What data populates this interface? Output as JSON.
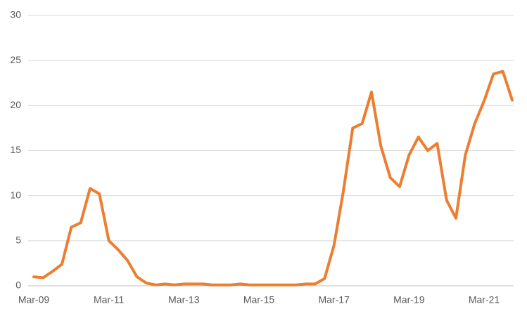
{
  "chart_data": {
    "type": "line",
    "categories": [
      "Mar-09",
      null,
      null,
      null,
      null,
      null,
      null,
      null,
      "Mar-11",
      null,
      null,
      null,
      null,
      null,
      null,
      null,
      "Mar-13",
      null,
      null,
      null,
      null,
      null,
      null,
      null,
      "Mar-15",
      null,
      null,
      null,
      null,
      null,
      null,
      null,
      "Mar-17",
      null,
      null,
      null,
      null,
      null,
      null,
      null,
      "Mar-19",
      null,
      null,
      null,
      null,
      null,
      null,
      null,
      "Mar-21",
      null,
      null,
      null
    ],
    "series": [
      {
        "color": "#ed7d31",
        "values": [
          1.0,
          0.9,
          1.6,
          2.4,
          6.5,
          7.0,
          10.8,
          10.2,
          5.0,
          4.0,
          2.8,
          1.0,
          0.3,
          0.1,
          0.2,
          0.1,
          0.2,
          0.2,
          0.2,
          0.1,
          0.1,
          0.1,
          0.2,
          0.1,
          0.1,
          0.1,
          0.1,
          0.1,
          0.1,
          0.2,
          0.2,
          0.8,
          4.5,
          10.5,
          17.5,
          18.0,
          21.5,
          15.5,
          12.0,
          11.0,
          14.5,
          16.5,
          15.0,
          15.8,
          9.5,
          7.5,
          14.5,
          18.0,
          20.5,
          23.5,
          23.8,
          20.6
        ]
      }
    ],
    "ylim": [
      0,
      30
    ],
    "yticks": [
      0,
      5,
      10,
      15,
      20,
      25,
      30
    ],
    "grid": true
  }
}
